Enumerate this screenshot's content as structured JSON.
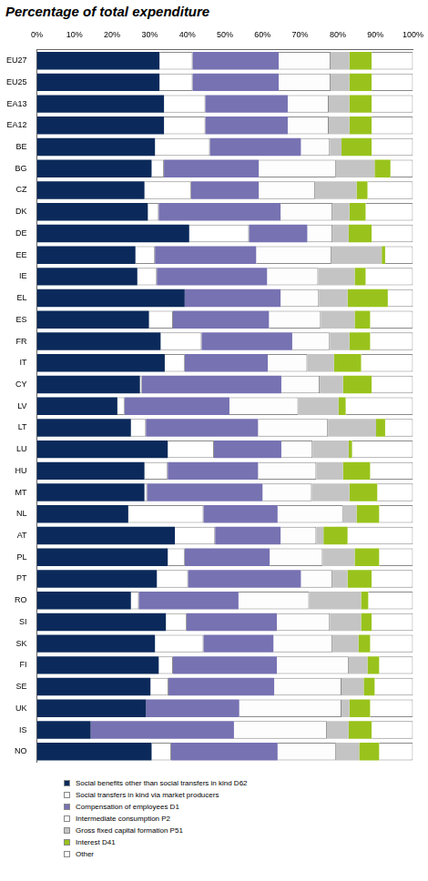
{
  "chart_data": {
    "type": "bar",
    "title": "Percentage of total expenditure",
    "orientation": "horizontal",
    "stacked": true,
    "grid": false,
    "legend": "bottom",
    "categories": [
      "EU27",
      "EU25",
      "EA13",
      "EA12",
      "BE",
      "BG",
      "CZ",
      "DK",
      "DE",
      "EE",
      "IE",
      "EL",
      "ES",
      "FR",
      "IT",
      "CY",
      "LV",
      "LT",
      "LU",
      "HU",
      "MT",
      "NL",
      "AT",
      "PL",
      "PT",
      "RO",
      "SI",
      "SK",
      "FI",
      "SE",
      "UK",
      "IS",
      "NO"
    ],
    "xlim": [
      0,
      100
    ],
    "xticks": [
      {
        "value": 0,
        "label": "0%"
      },
      {
        "value": 10,
        "label": "10%"
      },
      {
        "value": 20,
        "label": "20%"
      },
      {
        "value": 30,
        "label": "30%"
      },
      {
        "value": 40,
        "label": "40%"
      },
      {
        "value": 50,
        "label": "50%"
      },
      {
        "value": 60,
        "label": "60%"
      },
      {
        "value": 70,
        "label": "70%"
      },
      {
        "value": 80,
        "label": "80%"
      },
      {
        "value": 90,
        "label": "90%"
      },
      {
        "value": 100,
        "label": "100%"
      }
    ],
    "series": [
      {
        "name": "Social benefits other than social transfers in kind D62",
        "color": "#0b2a5b",
        "values": [
          32.6,
          32.6,
          33.8,
          33.8,
          31.4,
          30.5,
          28.6,
          29.5,
          40.5,
          26.2,
          26.7,
          39.3,
          29.8,
          32.9,
          34.0,
          27.4,
          21.4,
          25.0,
          34.8,
          28.6,
          28.6,
          24.3,
          36.7,
          34.8,
          31.9,
          25.0,
          34.3,
          31.4,
          32.4,
          30.2,
          29.0,
          14.3,
          30.5
        ]
      },
      {
        "name": "Social transfers in kind via market producers",
        "color": "#ffffff",
        "values": [
          8.8,
          8.8,
          11.0,
          11.0,
          14.6,
          3.3,
          12.4,
          2.9,
          15.9,
          5.2,
          5.2,
          0,
          6.4,
          10.9,
          5.3,
          0.5,
          1.9,
          4.0,
          12.3,
          6.2,
          0.7,
          20.0,
          10.7,
          4.5,
          8.3,
          2.1,
          5.5,
          12.9,
          3.8,
          4.8,
          0,
          0,
          5.2
        ]
      },
      {
        "name": "Compensation of employees D1",
        "color": "#7772b2",
        "values": [
          22.9,
          22.9,
          21.9,
          21.9,
          24.2,
          25.2,
          18.0,
          32.4,
          15.5,
          26.9,
          29.3,
          25.5,
          25.5,
          24.1,
          22.1,
          37.1,
          27.9,
          29.8,
          17.9,
          24.0,
          30.7,
          19.7,
          17.4,
          22.6,
          30.0,
          26.5,
          24.0,
          18.6,
          27.6,
          28.1,
          24.8,
          38.1,
          28.3
        ]
      },
      {
        "name": "Intermediate consumption P2",
        "color": "#fdfdfd",
        "values": [
          13.8,
          13.8,
          10.9,
          10.9,
          7.7,
          20.5,
          15.0,
          13.8,
          6.7,
          20.0,
          13.6,
          10.2,
          13.8,
          10.0,
          10.5,
          10.2,
          18.3,
          18.6,
          8.3,
          15.5,
          13.1,
          17.4,
          9.5,
          14.1,
          8.4,
          18.8,
          14.1,
          15.7,
          19.1,
          17.9,
          27.2,
          24.7,
          15.5
        ]
      },
      {
        "name": "Gross fixed capital formation P51",
        "color": "#c4c4c4",
        "values": [
          5.0,
          5.0,
          5.5,
          5.5,
          3.1,
          10.3,
          11.0,
          4.5,
          4.3,
          13.4,
          9.7,
          7.6,
          9.0,
          5.2,
          7.1,
          6.2,
          10.7,
          12.8,
          9.6,
          7.1,
          10.0,
          3.6,
          1.9,
          8.5,
          4.0,
          13.8,
          8.3,
          6.9,
          5.0,
          5.9,
          2.1,
          5.8,
          6.2
        ]
      },
      {
        "name": "Interest D41",
        "color": "#99c31c",
        "values": [
          5.9,
          5.9,
          5.9,
          5.9,
          8.0,
          4.2,
          2.9,
          4.3,
          6.1,
          0.9,
          2.9,
          10.7,
          4.1,
          5.5,
          7.2,
          7.6,
          1.9,
          2.4,
          0.9,
          7.2,
          7.4,
          6.0,
          6.4,
          6.5,
          6.4,
          1.9,
          2.8,
          3.1,
          3.1,
          2.9,
          5.5,
          6.1,
          5.3
        ]
      },
      {
        "name": "Other",
        "color": "#ffffff",
        "values": [
          11.0,
          11.0,
          11.0,
          11.0,
          11.0,
          6.0,
          12.1,
          12.6,
          11.0,
          7.4,
          12.6,
          6.7,
          11.4,
          11.4,
          13.8,
          11.0,
          17.9,
          7.4,
          16.2,
          11.4,
          9.5,
          9.0,
          17.4,
          9.0,
          11.0,
          11.9,
          11.0,
          11.4,
          9.0,
          10.2,
          11.4,
          11.0,
          9.0
        ]
      }
    ]
  }
}
